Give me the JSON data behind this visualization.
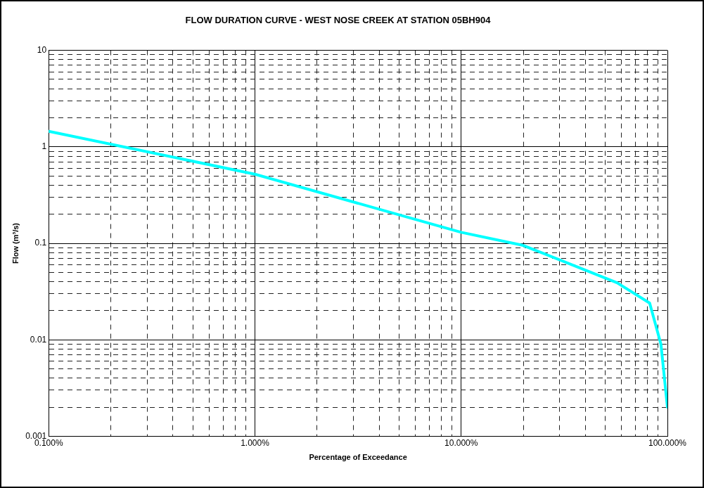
{
  "chart_data": {
    "type": "line",
    "title": "FLOW DURATION CURVE - WEST NOSE CREEK AT STATION 05BH904",
    "xlabel": "Percentage of Exceedance",
    "ylabel": "Flow (m³/s)",
    "log": "xy",
    "grid": true,
    "legend": false,
    "marker": "none",
    "line_style": "solid",
    "x": [
      0.1,
      1,
      10,
      20,
      57,
      82,
      93,
      100
    ],
    "series": [
      {
        "color": "#00ffff",
        "values": [
          1.45,
          0.52,
          0.13,
          0.095,
          0.039,
          0.024,
          0.009,
          0.002
        ]
      }
    ],
    "xlim": [
      0.1,
      100
    ],
    "ylim": [
      0.001,
      10
    ],
    "xticks": [
      {
        "value": 0.1,
        "label": "0.100%"
      },
      {
        "value": 0.2,
        "label": null
      },
      {
        "value": 0.3,
        "label": null
      },
      {
        "value": 0.4,
        "label": null
      },
      {
        "value": 0.5,
        "label": null
      },
      {
        "value": 0.6,
        "label": null
      },
      {
        "value": 0.7,
        "label": null
      },
      {
        "value": 0.8,
        "label": null
      },
      {
        "value": 0.9,
        "label": null
      },
      {
        "value": 1,
        "label": "1.000%"
      },
      {
        "value": 2,
        "label": null
      },
      {
        "value": 3,
        "label": null
      },
      {
        "value": 4,
        "label": null
      },
      {
        "value": 5,
        "label": null
      },
      {
        "value": 6,
        "label": null
      },
      {
        "value": 7,
        "label": null
      },
      {
        "value": 8,
        "label": null
      },
      {
        "value": 9,
        "label": null
      },
      {
        "value": 10,
        "label": "10.000%"
      },
      {
        "value": 20,
        "label": null
      },
      {
        "value": 30,
        "label": null
      },
      {
        "value": 40,
        "label": null
      },
      {
        "value": 50,
        "label": null
      },
      {
        "value": 60,
        "label": null
      },
      {
        "value": 70,
        "label": null
      },
      {
        "value": 80,
        "label": null
      },
      {
        "value": 90,
        "label": null
      },
      {
        "value": 100,
        "label": "100.000%"
      }
    ],
    "yticks": [
      0.001,
      {
        "value": 0.002,
        "label": null
      },
      {
        "value": 0.003,
        "label": null
      },
      {
        "value": 0.004,
        "label": null
      },
      {
        "value": 0.005,
        "label": null
      },
      {
        "value": 0.006,
        "label": null
      },
      {
        "value": 0.007,
        "label": null
      },
      {
        "value": 0.008,
        "label": null
      },
      {
        "value": 0.009,
        "label": null
      },
      0.01,
      {
        "value": 0.02,
        "label": null
      },
      {
        "value": 0.03,
        "label": null
      },
      {
        "value": 0.04,
        "label": null
      },
      {
        "value": 0.05,
        "label": null
      },
      {
        "value": 0.06,
        "label": null
      },
      {
        "value": 0.07,
        "label": null
      },
      {
        "value": 0.08,
        "label": null
      },
      {
        "value": 0.09,
        "label": null
      },
      0.1,
      {
        "value": 0.2,
        "label": null
      },
      {
        "value": 0.3,
        "label": null
      },
      {
        "value": 0.4,
        "label": null
      },
      {
        "value": 0.5,
        "label": null
      },
      {
        "value": 0.6,
        "label": null
      },
      {
        "value": 0.7,
        "label": null
      },
      {
        "value": 0.8,
        "label": null
      },
      {
        "value": 0.9,
        "label": null
      },
      1,
      {
        "value": 2,
        "label": null
      },
      {
        "value": 3,
        "label": null
      },
      {
        "value": 4,
        "label": null
      },
      {
        "value": 5,
        "label": null
      },
      {
        "value": 6,
        "label": null
      },
      {
        "value": 7,
        "label": null
      },
      {
        "value": 8,
        "label": null
      },
      {
        "value": 9,
        "label": null
      },
      10
    ]
  }
}
